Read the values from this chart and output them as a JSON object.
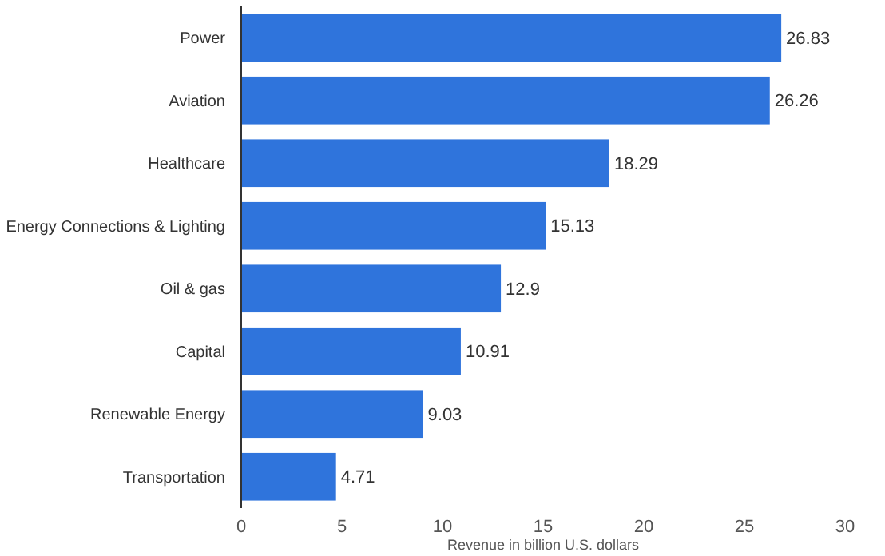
{
  "chart_data": {
    "type": "bar",
    "orientation": "horizontal",
    "xlabel": "Revenue in billion U.S. dollars",
    "categories": [
      "Power",
      "Aviation",
      "Healthcare",
      "Energy Connections & Lighting",
      "Oil & gas",
      "Capital",
      "Renewable Energy",
      "Transportation"
    ],
    "values": [
      26.83,
      26.26,
      18.29,
      15.13,
      12.9,
      10.91,
      9.03,
      4.71
    ],
    "color": "#2f74dc",
    "xlim": [
      0,
      30
    ],
    "xticks": [
      0,
      5,
      10,
      15,
      20,
      25,
      30
    ],
    "data_labels": true,
    "grid": false
  }
}
